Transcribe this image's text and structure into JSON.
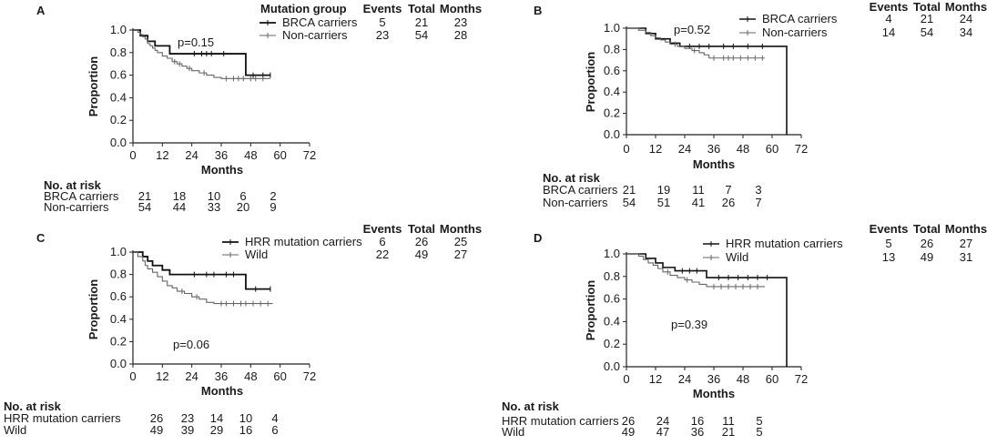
{
  "figure": {
    "risk_header": "No. at risk",
    "shared_tick_labels": [
      0,
      12,
      24,
      36,
      48,
      60,
      72
    ]
  },
  "chart_data": [
    {
      "panel": "A",
      "type": "line",
      "subtype": "kaplan-meier",
      "xlabel": "Months",
      "ylabel": "Proportion",
      "xlim": [
        0,
        72
      ],
      "ylim": [
        0,
        1.0
      ],
      "xticks": [
        0,
        12,
        24,
        36,
        48,
        60,
        72
      ],
      "yticks": [
        "0.0",
        "0.2",
        "0.4",
        "0.6",
        "0.8",
        "1.0"
      ],
      "p_value": "p=0.15",
      "legend_header": {
        "group": "Mutation group",
        "events": "Events",
        "total": "Total",
        "months": "Months"
      },
      "series": [
        {
          "name": "BRCA carriers",
          "events": "5",
          "total": "21",
          "months": "23",
          "color": "#111111",
          "width": 1.8,
          "steps": [
            [
              0,
              1.0
            ],
            [
              3,
              0.95
            ],
            [
              6,
              0.9
            ],
            [
              9,
              0.86
            ],
            [
              15,
              0.79
            ],
            [
              46,
              0.79
            ],
            [
              46,
              0.6
            ],
            [
              56,
              0.6
            ]
          ],
          "censors": [
            [
              25,
              0.79
            ],
            [
              28,
              0.79
            ],
            [
              30,
              0.79
            ],
            [
              32,
              0.79
            ],
            [
              37,
              0.79
            ],
            [
              49,
              0.6
            ],
            [
              53,
              0.6
            ],
            [
              56,
              0.6
            ]
          ]
        },
        {
          "name": "Non-carriers",
          "events": "23",
          "total": "54",
          "months": "28",
          "color": "#666666",
          "width": 1.1,
          "steps": [
            [
              0,
              1.0
            ],
            [
              2,
              0.98
            ],
            [
              3,
              0.96
            ],
            [
              4,
              0.94
            ],
            [
              5,
              0.92
            ],
            [
              6,
              0.88
            ],
            [
              7,
              0.86
            ],
            [
              8,
              0.84
            ],
            [
              9,
              0.82
            ],
            [
              10,
              0.8
            ],
            [
              12,
              0.77
            ],
            [
              14,
              0.75
            ],
            [
              16,
              0.72
            ],
            [
              18,
              0.7
            ],
            [
              20,
              0.68
            ],
            [
              22,
              0.66
            ],
            [
              24,
              0.64
            ],
            [
              27,
              0.62
            ],
            [
              30,
              0.6
            ],
            [
              33,
              0.58
            ],
            [
              36,
              0.57
            ],
            [
              56,
              0.57
            ]
          ],
          "censors": [
            [
              17,
              0.72
            ],
            [
              19,
              0.7
            ],
            [
              23,
              0.66
            ],
            [
              29,
              0.62
            ],
            [
              38,
              0.57
            ],
            [
              41,
              0.57
            ],
            [
              43,
              0.57
            ],
            [
              45,
              0.57
            ],
            [
              48,
              0.57
            ],
            [
              50,
              0.57
            ],
            [
              53,
              0.57
            ]
          ]
        }
      ],
      "risk_table": {
        "times": [
          0,
          12,
          24,
          36,
          48
        ],
        "rows": [
          {
            "label": "BRCA carriers",
            "counts": [
              "21",
              "18",
              "10",
              "6",
              "2"
            ]
          },
          {
            "label": "Non-carriers",
            "counts": [
              "54",
              "44",
              "33",
              "20",
              "9"
            ]
          }
        ]
      }
    },
    {
      "panel": "B",
      "type": "line",
      "subtype": "kaplan-meier",
      "xlabel": "Months",
      "ylabel": "Proportion",
      "xlim": [
        0,
        72
      ],
      "ylim": [
        0,
        1.0
      ],
      "xticks": [
        0,
        12,
        24,
        36,
        48,
        60,
        72
      ],
      "yticks": [
        "0.0",
        "0.2",
        "0.4",
        "0.6",
        "0.8",
        "1.0"
      ],
      "p_value": "p=0.52",
      "legend_header": {
        "group": "",
        "events": "Events",
        "total": "Total",
        "months": "Months"
      },
      "series": [
        {
          "name": "BRCA carriers",
          "events": "4",
          "total": "21",
          "months": "24",
          "color": "#111111",
          "width": 1.6,
          "steps": [
            [
              0,
              1.0
            ],
            [
              8,
              0.95
            ],
            [
              12,
              0.9
            ],
            [
              18,
              0.86
            ],
            [
              22,
              0.83
            ],
            [
              66,
              0.83
            ],
            [
              66,
              0.0
            ]
          ],
          "censors": [
            [
              26,
              0.83
            ],
            [
              30,
              0.83
            ],
            [
              34,
              0.83
            ],
            [
              40,
              0.83
            ],
            [
              44,
              0.83
            ],
            [
              50,
              0.83
            ],
            [
              56,
              0.83
            ]
          ]
        },
        {
          "name": "Non-carriers",
          "events": "14",
          "total": "54",
          "months": "34",
          "color": "#666666",
          "width": 1.1,
          "steps": [
            [
              0,
              1.0
            ],
            [
              5,
              0.98
            ],
            [
              8,
              0.96
            ],
            [
              10,
              0.93
            ],
            [
              12,
              0.91
            ],
            [
              14,
              0.89
            ],
            [
              16,
              0.87
            ],
            [
              18,
              0.85
            ],
            [
              21,
              0.83
            ],
            [
              24,
              0.81
            ],
            [
              27,
              0.79
            ],
            [
              30,
              0.77
            ],
            [
              32,
              0.75
            ],
            [
              34,
              0.72
            ],
            [
              57,
              0.72
            ]
          ],
          "censors": [
            [
              20,
              0.85
            ],
            [
              28,
              0.79
            ],
            [
              36,
              0.72
            ],
            [
              40,
              0.72
            ],
            [
              42,
              0.72
            ],
            [
              44,
              0.72
            ],
            [
              47,
              0.72
            ],
            [
              50,
              0.72
            ],
            [
              53,
              0.72
            ],
            [
              56,
              0.72
            ]
          ]
        }
      ],
      "risk_table": {
        "times": [
          0,
          12,
          24,
          36,
          48
        ],
        "rows": [
          {
            "label": "BRCA carriers",
            "counts": [
              "21",
              "19",
              "11",
              "7",
              "3"
            ]
          },
          {
            "label": "Non-carriers",
            "counts": [
              "54",
              "51",
              "41",
              "26",
              "7"
            ]
          }
        ]
      }
    },
    {
      "panel": "C",
      "type": "line",
      "subtype": "kaplan-meier",
      "xlabel": "Months",
      "ylabel": "Proportion",
      "xlim": [
        0,
        72
      ],
      "ylim": [
        0,
        1.0
      ],
      "xticks": [
        0,
        12,
        24,
        36,
        48,
        60,
        72
      ],
      "yticks": [
        "0.0",
        "0.2",
        "0.4",
        "0.6",
        "0.8",
        "1.0"
      ],
      "p_value": "p=0.06",
      "legend_header": {
        "group": "",
        "events": "Events",
        "total": "Total",
        "months": "Months"
      },
      "series": [
        {
          "name": "HRR mutation carriers",
          "events": "6",
          "total": "26",
          "months": "25",
          "color": "#111111",
          "width": 1.8,
          "steps": [
            [
              0,
              1.0
            ],
            [
              4,
              0.96
            ],
            [
              6,
              0.92
            ],
            [
              8,
              0.88
            ],
            [
              12,
              0.84
            ],
            [
              15,
              0.8
            ],
            [
              46,
              0.8
            ],
            [
              46,
              0.67
            ],
            [
              56,
              0.67
            ]
          ],
          "censors": [
            [
              25,
              0.8
            ],
            [
              30,
              0.8
            ],
            [
              33,
              0.8
            ],
            [
              38,
              0.8
            ],
            [
              41,
              0.8
            ],
            [
              50,
              0.67
            ],
            [
              56,
              0.67
            ]
          ]
        },
        {
          "name": "Wild",
          "events": "22",
          "total": "49",
          "months": "27",
          "color": "#666666",
          "width": 1.1,
          "steps": [
            [
              0,
              1.0
            ],
            [
              2,
              0.96
            ],
            [
              4,
              0.92
            ],
            [
              5,
              0.88
            ],
            [
              6,
              0.85
            ],
            [
              8,
              0.82
            ],
            [
              10,
              0.78
            ],
            [
              12,
              0.74
            ],
            [
              14,
              0.7
            ],
            [
              16,
              0.68
            ],
            [
              18,
              0.65
            ],
            [
              21,
              0.63
            ],
            [
              24,
              0.6
            ],
            [
              27,
              0.58
            ],
            [
              30,
              0.55
            ],
            [
              33,
              0.54
            ],
            [
              57,
              0.54
            ]
          ],
          "censors": [
            [
              20,
              0.65
            ],
            [
              26,
              0.6
            ],
            [
              36,
              0.54
            ],
            [
              38,
              0.54
            ],
            [
              41,
              0.54
            ],
            [
              44,
              0.54
            ],
            [
              46,
              0.54
            ],
            [
              49,
              0.54
            ],
            [
              52,
              0.54
            ],
            [
              55,
              0.54
            ]
          ]
        }
      ],
      "risk_table": {
        "times": [
          0,
          12,
          24,
          36,
          48
        ],
        "rows": [
          {
            "label": "HRR mutation carriers",
            "counts": [
              "26",
              "23",
              "14",
              "10",
              "4"
            ]
          },
          {
            "label": "Wild",
            "counts": [
              "49",
              "39",
              "29",
              "16",
              "6"
            ]
          }
        ]
      }
    },
    {
      "panel": "D",
      "type": "line",
      "subtype": "kaplan-meier",
      "xlabel": "Months",
      "ylabel": "Proportion",
      "xlim": [
        0,
        72
      ],
      "ylim": [
        0,
        1.0
      ],
      "xticks": [
        0,
        12,
        24,
        36,
        48,
        60,
        72
      ],
      "yticks": [
        "0.0",
        "0.2",
        "0.4",
        "0.6",
        "0.8",
        "1.0"
      ],
      "p_value": "p=0.39",
      "legend_header": {
        "group": "",
        "events": "Events",
        "total": "Total",
        "months": "Months"
      },
      "series": [
        {
          "name": "HRR mutation carriers",
          "events": "5",
          "total": "26",
          "months": "27",
          "color": "#111111",
          "width": 1.6,
          "steps": [
            [
              0,
              1.0
            ],
            [
              8,
              0.96
            ],
            [
              12,
              0.92
            ],
            [
              15,
              0.88
            ],
            [
              20,
              0.85
            ],
            [
              33,
              0.85
            ],
            [
              33,
              0.79
            ],
            [
              66,
              0.79
            ],
            [
              66,
              0.0
            ]
          ],
          "censors": [
            [
              23,
              0.85
            ],
            [
              26,
              0.85
            ],
            [
              29,
              0.85
            ],
            [
              38,
              0.79
            ],
            [
              42,
              0.79
            ],
            [
              46,
              0.79
            ],
            [
              50,
              0.79
            ],
            [
              54,
              0.79
            ],
            [
              58,
              0.79
            ]
          ]
        },
        {
          "name": "Wild",
          "events": "13",
          "total": "49",
          "months": "31",
          "color": "#666666",
          "width": 1.1,
          "steps": [
            [
              0,
              1.0
            ],
            [
              5,
              0.98
            ],
            [
              7,
              0.95
            ],
            [
              9,
              0.92
            ],
            [
              11,
              0.9
            ],
            [
              13,
              0.87
            ],
            [
              15,
              0.84
            ],
            [
              18,
              0.81
            ],
            [
              21,
              0.79
            ],
            [
              24,
              0.77
            ],
            [
              27,
              0.75
            ],
            [
              30,
              0.73
            ],
            [
              33,
              0.71
            ],
            [
              57,
              0.71
            ]
          ],
          "censors": [
            [
              17,
              0.84
            ],
            [
              25,
              0.77
            ],
            [
              36,
              0.71
            ],
            [
              39,
              0.71
            ],
            [
              42,
              0.71
            ],
            [
              45,
              0.71
            ],
            [
              48,
              0.71
            ],
            [
              51,
              0.71
            ],
            [
              54,
              0.71
            ]
          ]
        }
      ],
      "risk_table": {
        "times": [
          0,
          12,
          24,
          36,
          48
        ],
        "rows": [
          {
            "label": "HRR mutation carriers",
            "counts": [
              "26",
              "24",
              "16",
              "11",
              "5"
            ]
          },
          {
            "label": "Wild",
            "counts": [
              "49",
              "47",
              "36",
              "21",
              "5"
            ]
          }
        ]
      }
    }
  ]
}
